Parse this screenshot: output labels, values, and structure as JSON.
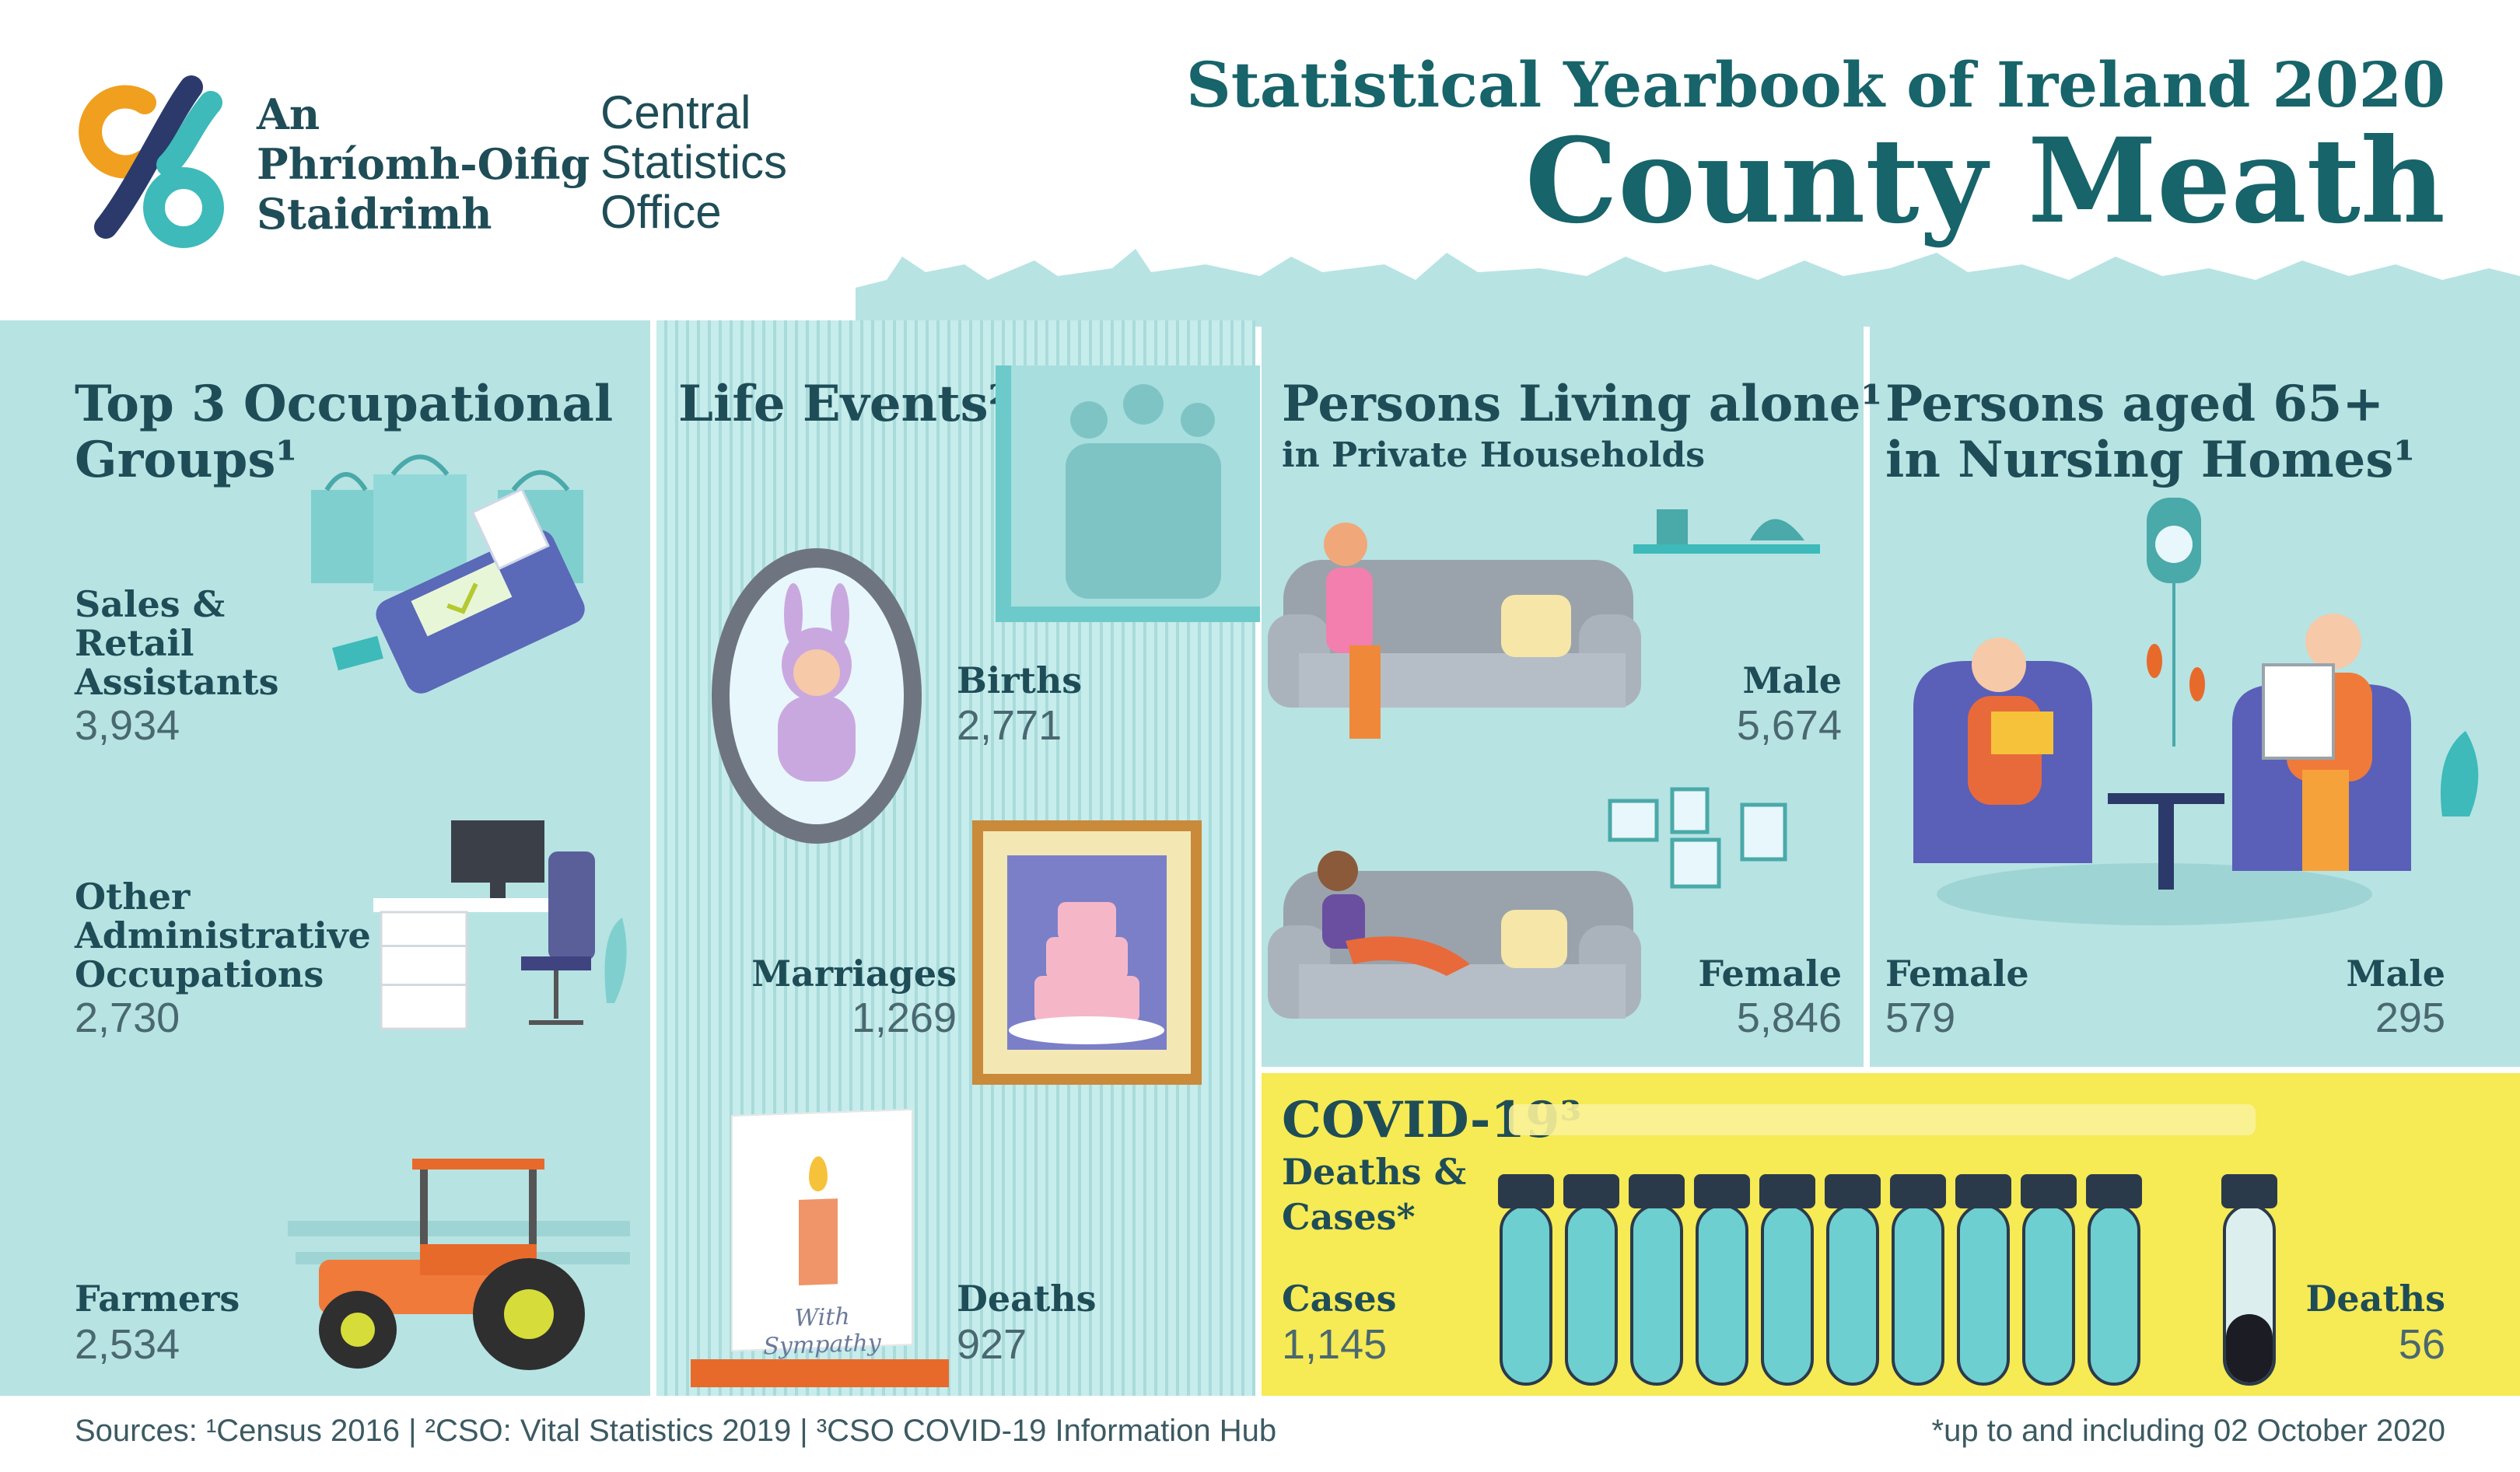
{
  "header": {
    "logo_irish": [
      "An",
      "Phríomh-Oifig",
      "Staidrimh"
    ],
    "logo_english": [
      "Central",
      "Statistics",
      "Office"
    ],
    "title_small": "Statistical Yearbook of Ireland 2020",
    "title_big": "County Meath"
  },
  "occupations": {
    "title_line1": "Top 3 Occupational",
    "title_line2": "Groups¹",
    "items": [
      {
        "label": [
          "Sales &",
          "Retail",
          "Assistants"
        ],
        "value": "3,934"
      },
      {
        "label": [
          "Other",
          "Administrative",
          "Occupations"
        ],
        "value": "2,730"
      },
      {
        "label": [
          "Farmers"
        ],
        "value": "2,534"
      }
    ]
  },
  "life_events": {
    "title": "Life Events²",
    "items": [
      {
        "label": "Births",
        "value": "2,771"
      },
      {
        "label": "Marriages",
        "value": "1,269"
      },
      {
        "label": "Deaths",
        "value": "927"
      }
    ],
    "card_text": "With Sympathy"
  },
  "living_alone": {
    "title": "Persons Living alone¹",
    "subtitle": "in Private Households",
    "male_label": "Male",
    "male_value": "5,674",
    "female_label": "Female",
    "female_value": "5,846"
  },
  "nursing": {
    "title_line1": "Persons aged 65+",
    "title_line2": "in Nursing Homes¹",
    "female_label": "Female",
    "female_value": "579",
    "male_label": "Male",
    "male_value": "295"
  },
  "covid": {
    "title": "COVID-19³",
    "subtitle_line1": "Deaths &",
    "subtitle_line2": "Cases*",
    "cases_label": "Cases",
    "cases_value": "1,145",
    "deaths_label": "Deaths",
    "deaths_value": "56"
  },
  "footer": {
    "sources": "Sources: ¹Census 2016  |  ²CSO: Vital Statistics 2019  |  ³CSO COVID-19 Information Hub",
    "note": "*up to and including 02 October 2020"
  },
  "colors": {
    "teal_dark": "#17646a",
    "panel": "#b7e3e3",
    "covid_yellow": "#f6ea55",
    "logo_orange": "#f0a01e",
    "logo_navy": "#2b3a6b",
    "logo_teal": "#3dbab9"
  }
}
